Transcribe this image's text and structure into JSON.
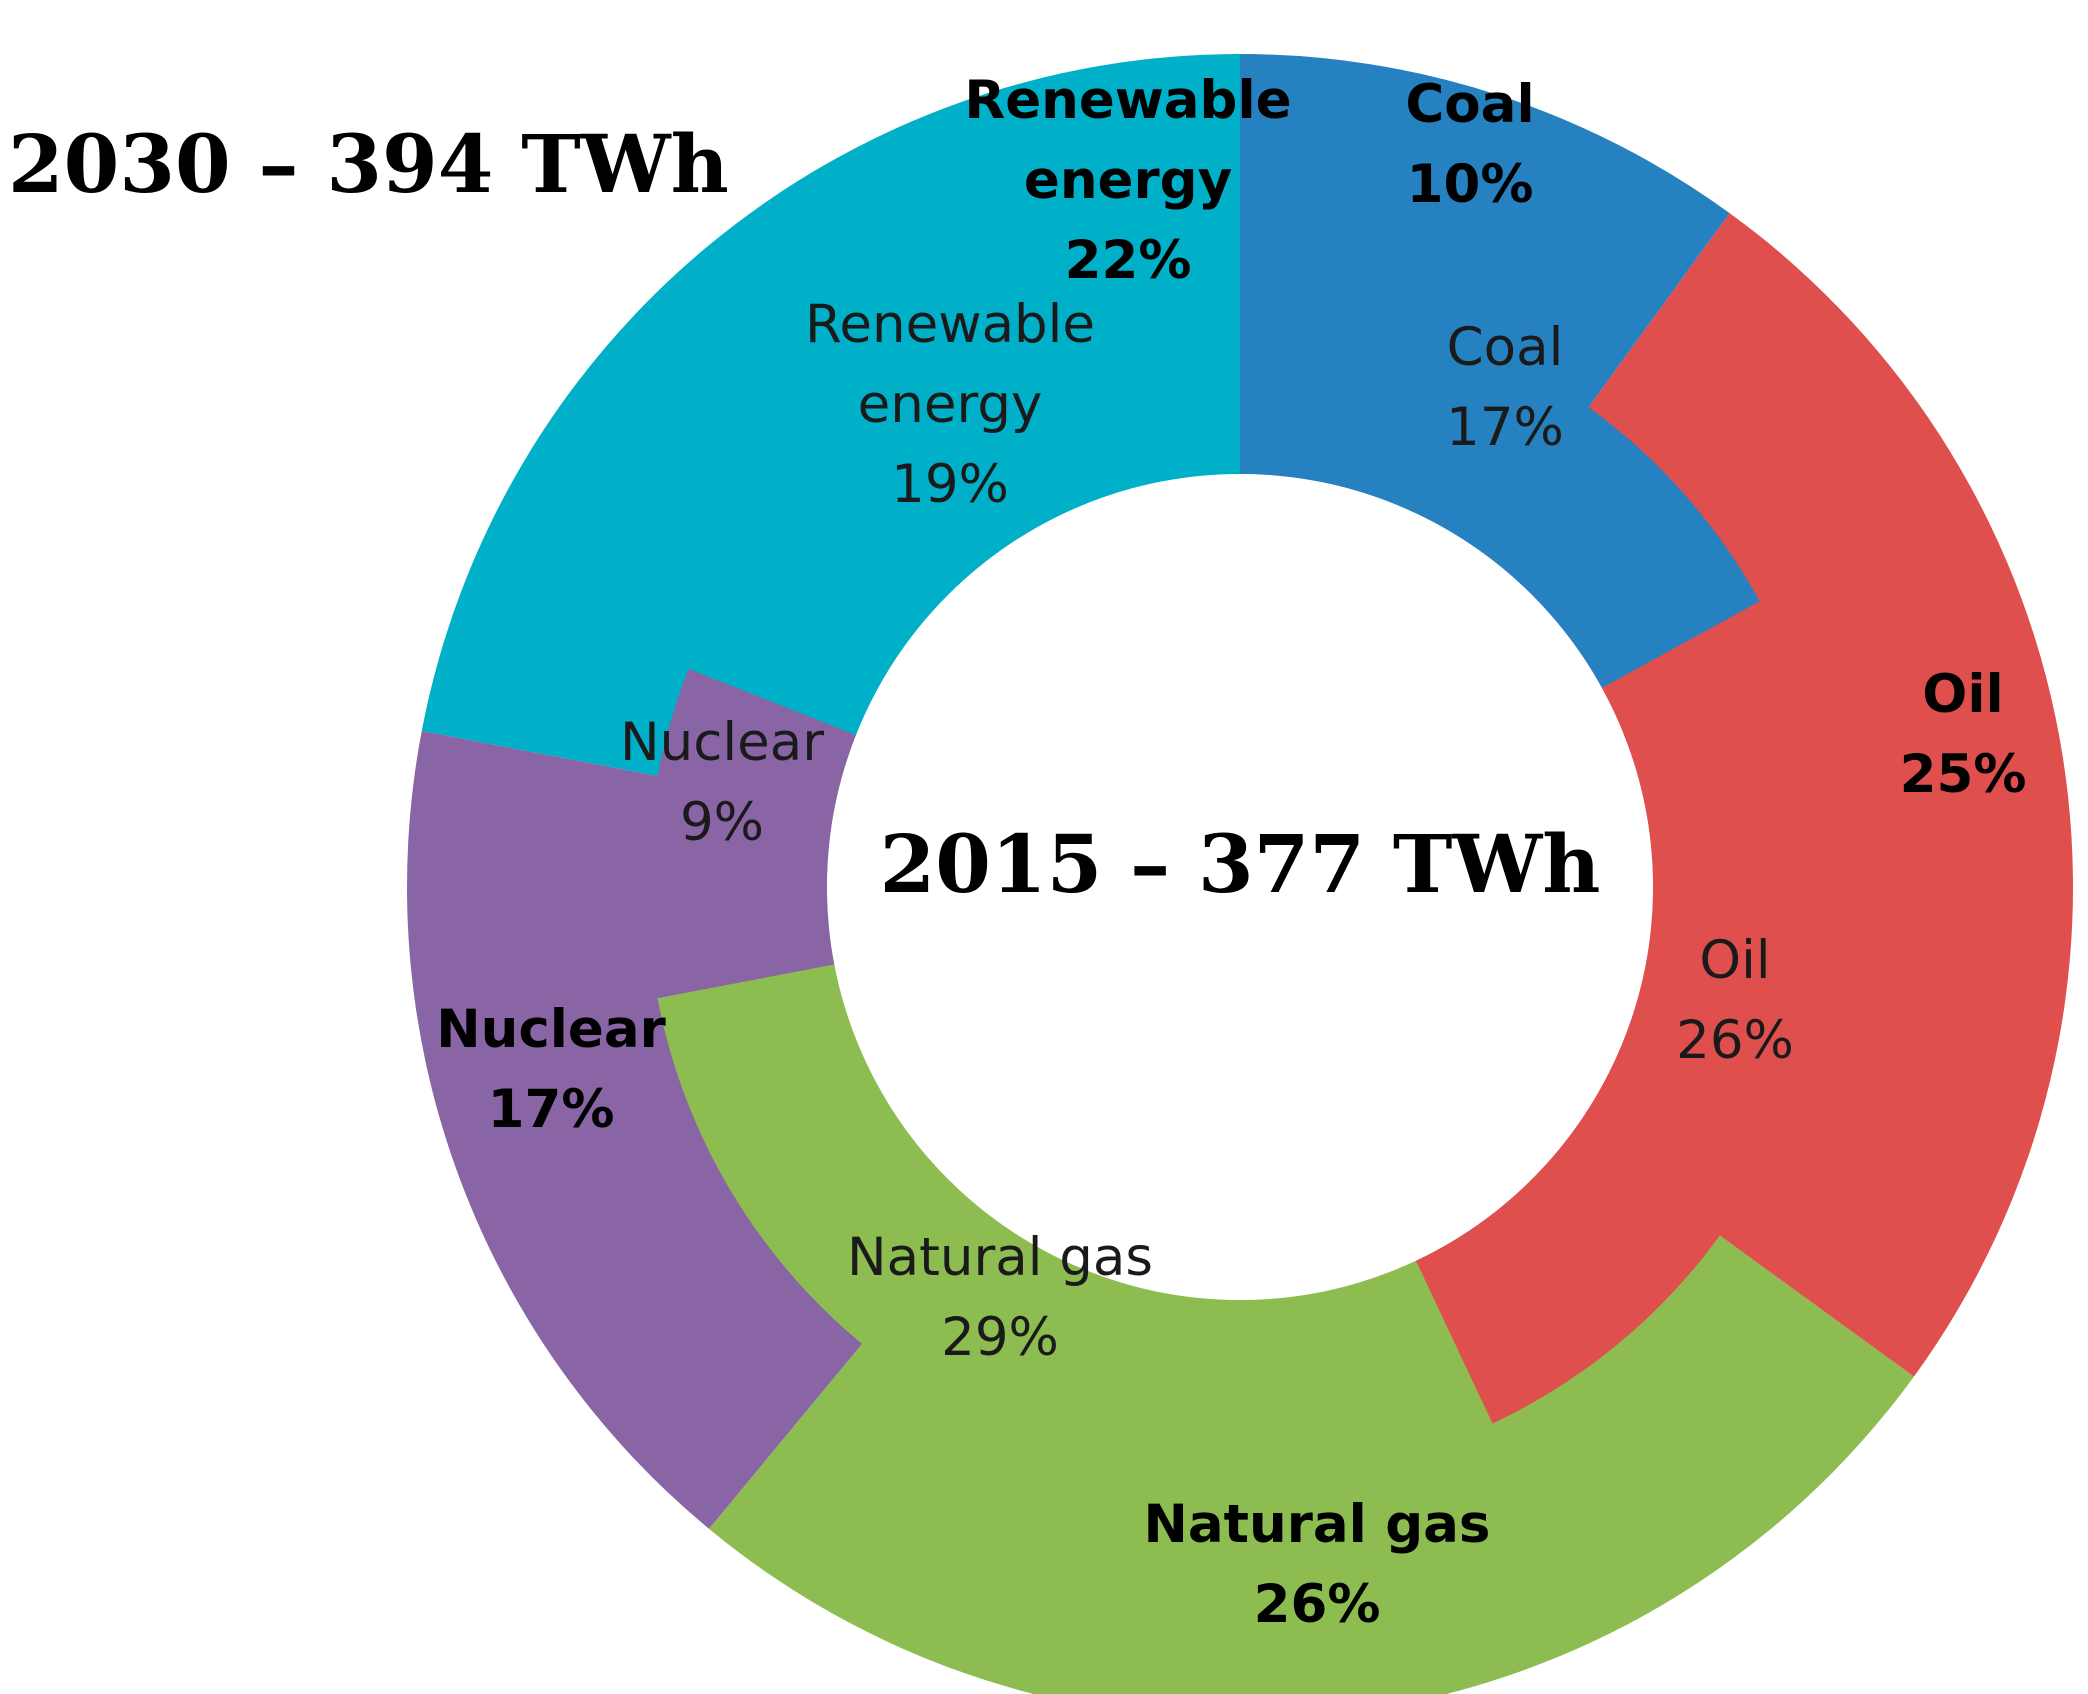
{
  "chart_data": {
    "type": "donut",
    "outer_title": "2030 – 394 TWh",
    "inner_title": "2015 – 377 TWh",
    "categories": [
      "Coal",
      "Oil",
      "Natural gas",
      "Nuclear",
      "Renewable energy"
    ],
    "colors": {
      "Coal": "#2581C0",
      "Oil": "#DE4F4E",
      "Natural gas": "#8DBD51",
      "Nuclear": "#8A65A6",
      "Renewable energy": "#00AFC8"
    },
    "series": [
      {
        "name": "2030",
        "ring": "outer",
        "values": [
          10,
          25,
          26,
          17,
          22
        ],
        "labels": [
          {
            "lines": [
              "Coal",
              "10%"
            ]
          },
          {
            "lines": [
              "Oil",
              "25%"
            ]
          },
          {
            "lines": [
              "Natural gas",
              "26%"
            ]
          },
          {
            "lines": [
              "Nuclear",
              "17%"
            ]
          },
          {
            "lines": [
              "Renewable",
              "energy",
              "22%"
            ]
          }
        ]
      },
      {
        "name": "2015",
        "ring": "inner",
        "values": [
          17,
          26,
          29,
          9,
          19
        ],
        "labels": [
          {
            "lines": [
              "Coal",
              "17%"
            ]
          },
          {
            "lines": [
              "Oil",
              "26%"
            ]
          },
          {
            "lines": [
              "Natural gas",
              "29%"
            ]
          },
          {
            "lines": [
              "Nuclear",
              "9%"
            ]
          },
          {
            "lines": [
              "Renewable",
              "energy",
              "19%"
            ]
          }
        ]
      }
    ]
  }
}
